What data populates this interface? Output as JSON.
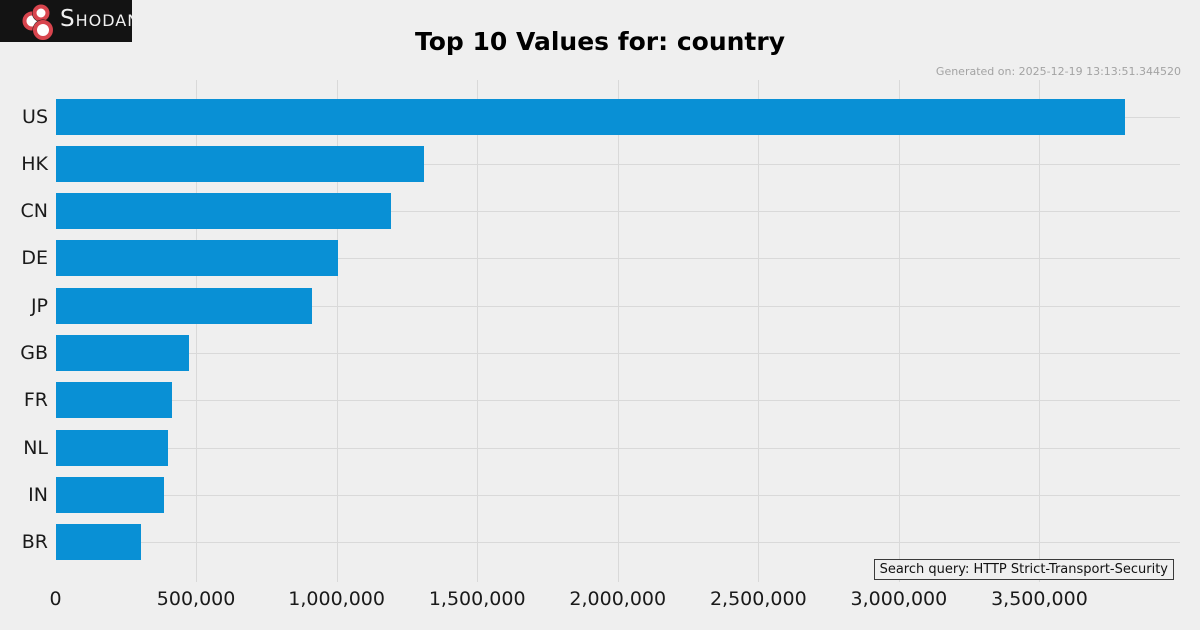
{
  "logo": {
    "text": "Shodan"
  },
  "meta": {
    "generated_on": "Generated on: 2025-12-19 13:13:51.344520"
  },
  "search_query_box": {
    "label": "Search query: HTTP Strict-Transport-Security"
  },
  "colors": {
    "background": "#efefef",
    "bar": "#0990d5",
    "grid": "#d9d9d9",
    "logo_bg": "#131313",
    "logo_ring": "#d8454e",
    "generated_on_text": "#a3a3a3"
  },
  "chart_data": {
    "type": "bar",
    "orientation": "horizontal",
    "title": "Top 10 Values for: country",
    "xlabel": "",
    "ylabel": "",
    "categories": [
      "US",
      "HK",
      "CN",
      "DE",
      "JP",
      "GB",
      "FR",
      "NL",
      "IN",
      "BR"
    ],
    "values": [
      3805000,
      1311000,
      1194000,
      1005000,
      913000,
      475000,
      415000,
      400000,
      386000,
      304000
    ],
    "xlim": [
      0,
      4000000
    ],
    "xticks": [
      0,
      500000,
      1000000,
      1500000,
      2000000,
      2500000,
      3000000,
      3500000
    ],
    "xtick_labels": [
      "0",
      "500,000",
      "1,000,000",
      "1,500,000",
      "2,000,000",
      "2,500,000",
      "3,000,000",
      "3,500,000"
    ],
    "grid": true,
    "legend": null
  }
}
